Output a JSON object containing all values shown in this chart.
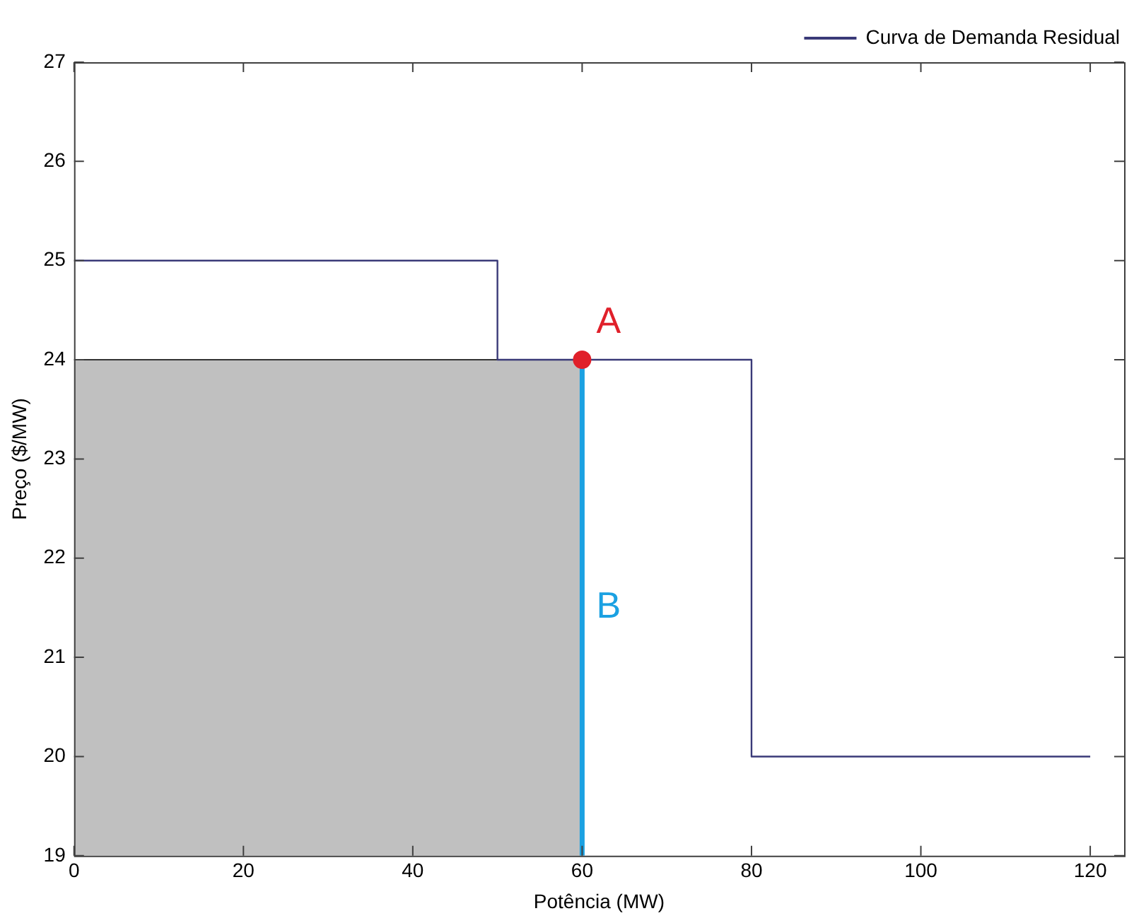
{
  "chart_data": {
    "type": "line",
    "xlabel": "Potência (MW)",
    "ylabel": "Preço ($/MW)",
    "xlim": [
      0,
      124
    ],
    "xticks": [
      0,
      20,
      40,
      60,
      80,
      100,
      120
    ],
    "ylim": [
      19,
      27
    ],
    "yticks": [
      19,
      20,
      21,
      22,
      23,
      24,
      25,
      26,
      27
    ],
    "grid": false,
    "legend": "top right",
    "series": [
      {
        "type": "area",
        "color": "#c0c0c0",
        "x": [
          0,
          60
        ],
        "values": [
          24,
          24
        ]
      },
      {
        "type": "step",
        "name": "Curva de Demanda Residual",
        "color": "#3a3a78",
        "x": [
          0,
          50,
          80,
          120
        ],
        "values": [
          25,
          24,
          20,
          20
        ]
      },
      {
        "type": "line",
        "color": "#1ba1e2",
        "x": [
          60,
          60
        ],
        "values": [
          19,
          24
        ]
      },
      {
        "type": "scatter",
        "color": "#e0202a",
        "x": [
          60
        ],
        "values": [
          24
        ]
      }
    ],
    "annotations": [
      {
        "text": "A",
        "x": 60,
        "y": 24
      },
      {
        "text": "B",
        "x": 60,
        "y": 21.5
      }
    ]
  }
}
